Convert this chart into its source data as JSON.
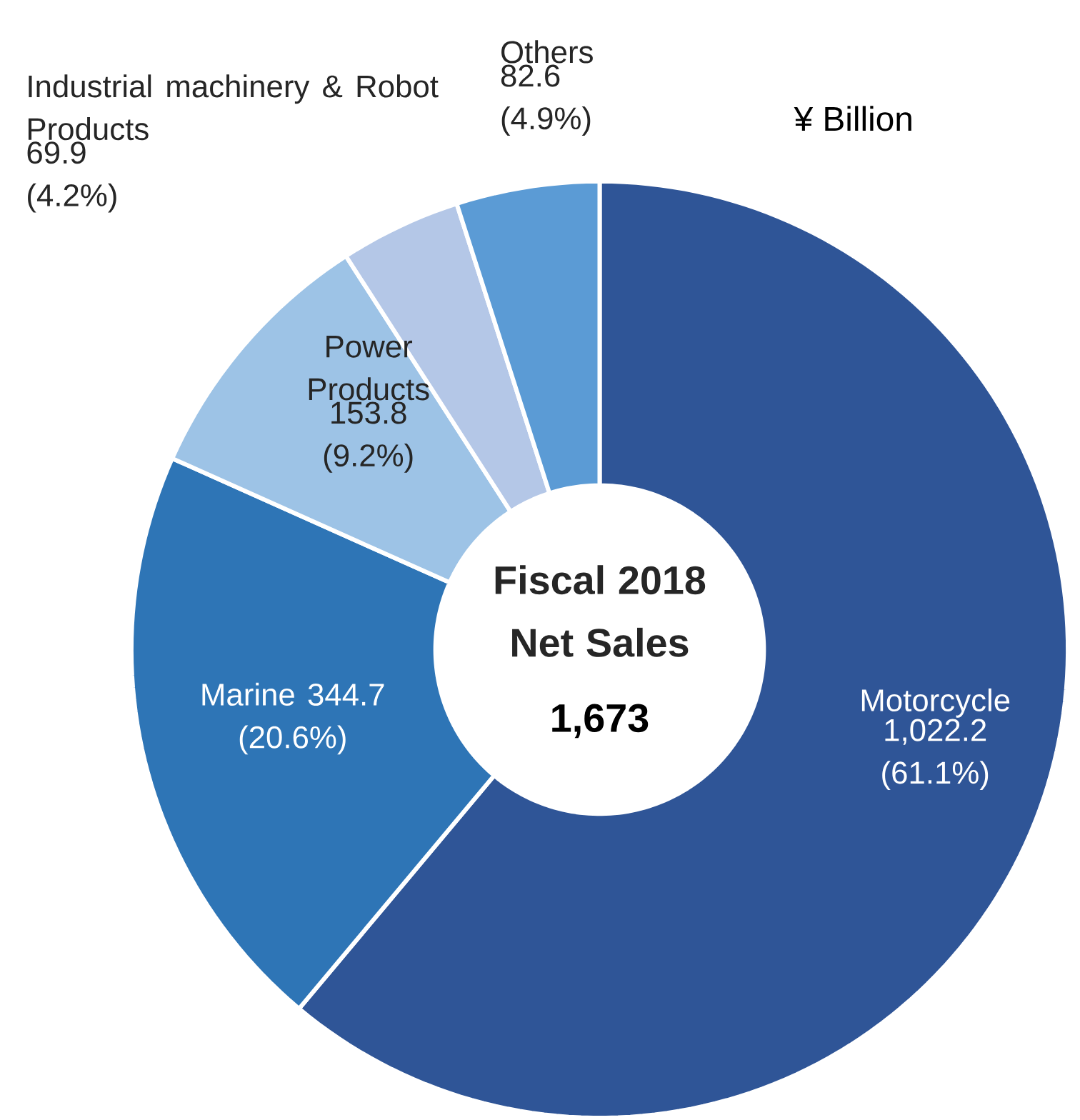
{
  "chart_data": {
    "type": "donut",
    "title": "Fiscal 2018 Net Sales",
    "categories": [
      "Motorcycle",
      "Marine",
      "Power Products",
      "Industrial machinery & Robot Products",
      "Others"
    ],
    "values": [
      1022.2,
      344.7,
      153.8,
      69.9,
      82.6
    ],
    "colors": [
      "#2f5597",
      "#2e75b6",
      "#9dc3e6",
      "#b4c7e7",
      "#5b9bd5"
    ],
    "value_labels": [
      "1,022.2 (61.1%)",
      "344.7 (20.6%)",
      "153.8 (9.2%)",
      "69.9 (4.2%)",
      "82.6 (4.9%)"
    ],
    "annotations": [
      "1,673",
      "¥ Billion"
    ]
  }
}
